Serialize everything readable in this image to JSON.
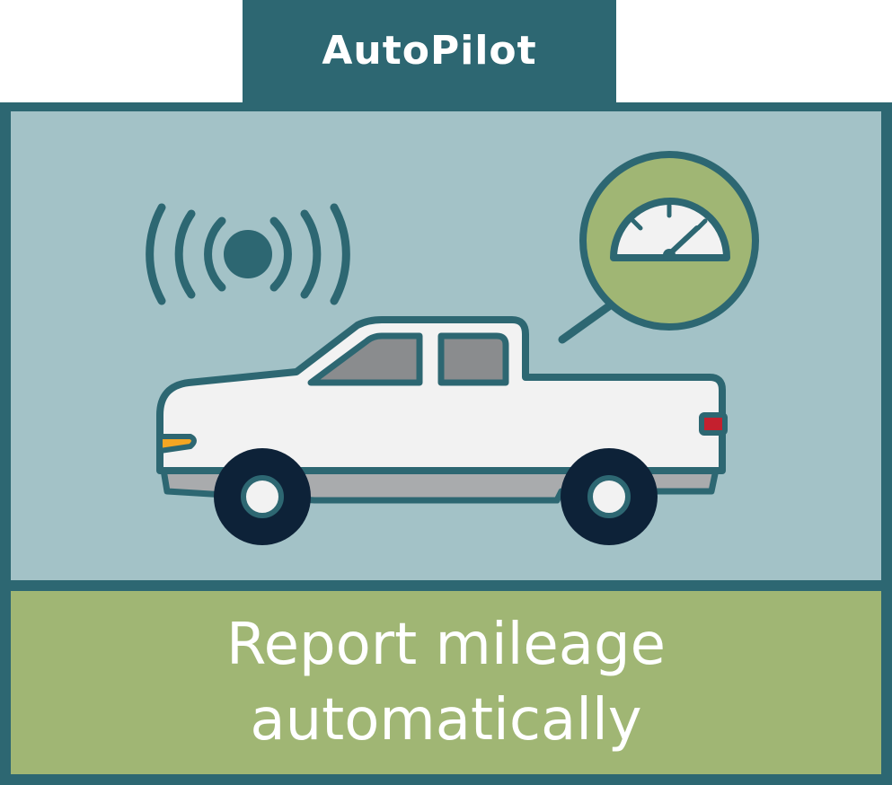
{
  "header": {
    "title": "AutoPilot"
  },
  "caption": {
    "line1": "Report mileage",
    "line2": "automatically"
  },
  "colors": {
    "dark_teal": "#2d6772",
    "scene_bg": "#a3c2c7",
    "green": "#a0b674",
    "car_body": "#f2f2f2",
    "window_gray": "#8a8c8e",
    "tire": "#0d2238",
    "headlight": "#f5a623",
    "taillight": "#c4202e"
  },
  "icons": {
    "signal": "wireless-signal-icon",
    "gauge": "speedometer-icon",
    "vehicle": "pickup-truck-icon"
  }
}
